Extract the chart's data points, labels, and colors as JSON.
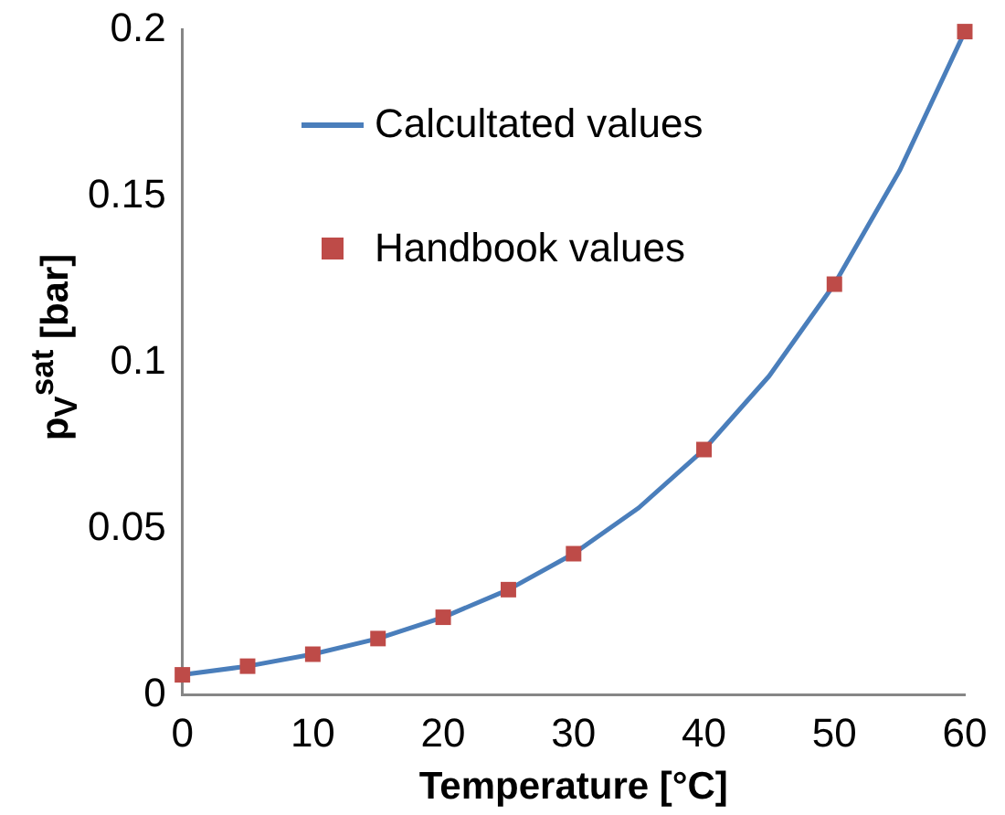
{
  "chart_data": {
    "type": "scatter",
    "xlabel": "Temperature [°C]",
    "ylabel": "p$_{V}$$^{sat}$ [bar]",
    "xlim": [
      0,
      60
    ],
    "xticks": [
      0,
      10,
      20,
      30,
      40,
      50,
      60
    ],
    "ylim": [
      0,
      0.2
    ],
    "yticks": [
      0,
      0.05,
      0.1,
      0.15,
      0.2
    ],
    "grid": false,
    "legend": "top left",
    "series": [
      {
        "type": "line",
        "name": "Calcultated values",
        "color": "#4a7ebb",
        "marker": "none",
        "x": [
          0,
          5,
          10,
          15,
          20,
          25,
          30,
          35,
          40,
          45,
          50,
          55,
          60
        ],
        "values": [
          0.0061,
          0.0087,
          0.0123,
          0.017,
          0.0234,
          0.0317,
          0.0425,
          0.0563,
          0.0738,
          0.0959,
          0.1235,
          0.1576,
          0.1994
        ]
      },
      {
        "type": "scatter",
        "name": "Handbook values",
        "color": "#be4b48",
        "marker": "square",
        "x": [
          0,
          5,
          10,
          15,
          20,
          25,
          30,
          40,
          50,
          60
        ],
        "values": [
          0.0061,
          0.0087,
          0.0123,
          0.017,
          0.0234,
          0.0317,
          0.0425,
          0.0738,
          0.1235,
          0.1994
        ]
      }
    ]
  }
}
